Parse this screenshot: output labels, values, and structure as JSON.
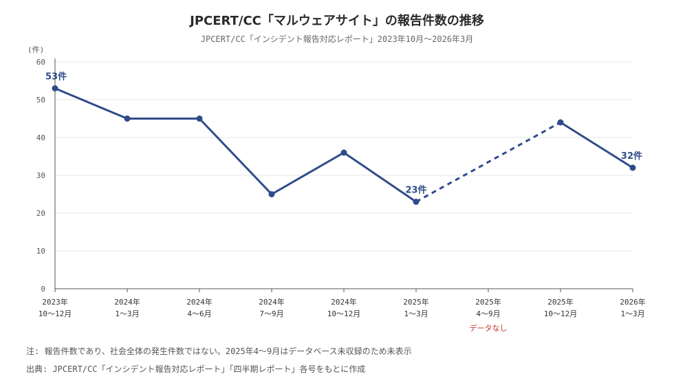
{
  "title": "JPCERT/CC「マルウェアサイト」の報告件数の推移",
  "subtitle": "JPCERT/CC「インシデント報告対応レポート」2023年10月〜2026年3月",
  "note": "注: 報告件数であり、社会全体の発生件数ではない。2025年4〜9月はデータベース未収録のため未表示",
  "source": "出典: JPCERT/CC「インシデント報告対応レポート」「四半期レポート」各号をもとに作成",
  "chart_data": {
    "type": "line",
    "ylabel": "(件)",
    "ylim": [
      0,
      60
    ],
    "yticks": [
      0,
      10,
      20,
      30,
      40,
      50,
      60
    ],
    "grid": true,
    "categories": [
      {
        "year": "2023年",
        "period": "10〜12月"
      },
      {
        "year": "2024年",
        "period": "1〜3月"
      },
      {
        "year": "2024年",
        "period": "4〜6月"
      },
      {
        "year": "2024年",
        "period": "7〜9月"
      },
      {
        "year": "2024年",
        "period": "10〜12月"
      },
      {
        "year": "2025年",
        "period": "1〜3月"
      },
      {
        "year": "2025年",
        "period": "4〜9月",
        "note": "データなし"
      },
      {
        "year": "2025年",
        "period": "10〜12月"
      },
      {
        "year": "2026年",
        "period": "1〜3月"
      }
    ],
    "values": [
      53,
      45,
      45,
      25,
      36,
      23,
      null,
      44,
      32
    ],
    "data_labels": [
      {
        "index": 0,
        "text": "53件"
      },
      {
        "index": 5,
        "text": "23件"
      },
      {
        "index": 8,
        "text": "32件"
      }
    ],
    "gap_line_style": "dashed",
    "colors": {
      "line": "#2f4b8a",
      "grid": "#e6e6e6",
      "axis": "#555555",
      "missing_note": "#c0392b"
    }
  }
}
